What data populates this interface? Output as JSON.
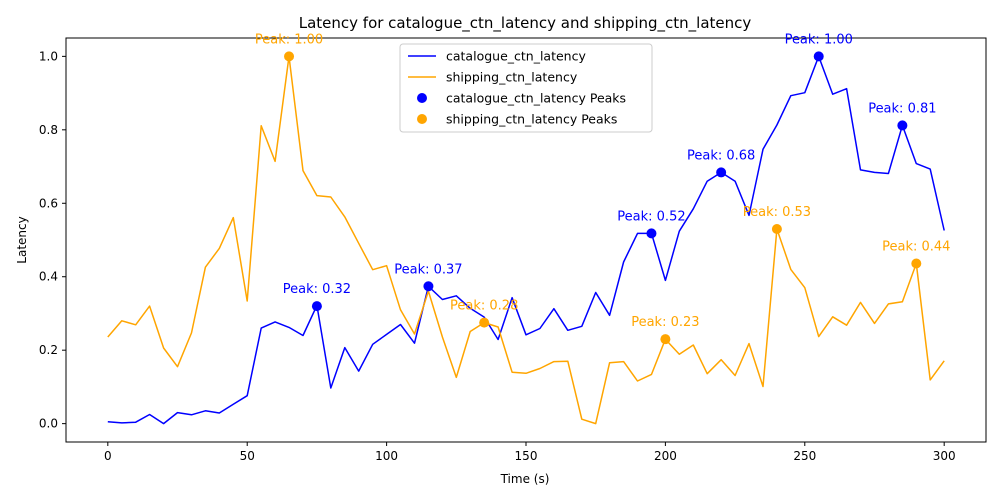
{
  "chart_data": {
    "type": "line",
    "title": "Latency for catalogue_ctn_latency and shipping_ctn_latency",
    "xlabel": "Time (s)",
    "ylabel": "Latency",
    "xlim": [
      -15,
      315
    ],
    "ylim": [
      -0.05,
      1.05
    ],
    "xticks": [
      0,
      50,
      100,
      150,
      200,
      250,
      300
    ],
    "yticks": [
      0.0,
      0.2,
      0.4,
      0.6,
      0.8,
      1.0
    ],
    "grid": false,
    "legend_position": "top-center",
    "peak_label_prefix": "Peak: ",
    "x": [
      0,
      5,
      10,
      15,
      20,
      25,
      30,
      35,
      40,
      45,
      50,
      55,
      60,
      65,
      70,
      75,
      80,
      85,
      90,
      95,
      100,
      105,
      110,
      115,
      120,
      125,
      130,
      135,
      140,
      145,
      150,
      155,
      160,
      165,
      170,
      175,
      180,
      185,
      190,
      195,
      200,
      205,
      210,
      215,
      220,
      225,
      230,
      235,
      240,
      245,
      250,
      255,
      260,
      265,
      270,
      275,
      280,
      285,
      290,
      295,
      300
    ],
    "series": [
      {
        "name": "catalogue_ctn_latency",
        "color": "#0000ff",
        "values": [
          0.005,
          0.002,
          0.004,
          0.025,
          0.0,
          0.03,
          0.024,
          0.035,
          0.029,
          0.053,
          0.076,
          0.26,
          0.277,
          0.262,
          0.24,
          0.322,
          0.097,
          0.207,
          0.143,
          0.216,
          0.243,
          0.27,
          0.219,
          0.374,
          0.338,
          0.348,
          0.314,
          0.29,
          0.229,
          0.343,
          0.242,
          0.259,
          0.313,
          0.254,
          0.265,
          0.357,
          0.295,
          0.44,
          0.518,
          0.518,
          0.39,
          0.524,
          0.585,
          0.66,
          0.684,
          0.66,
          0.567,
          0.747,
          0.813,
          0.893,
          0.901,
          1.0,
          0.897,
          0.912,
          0.691,
          0.684,
          0.681,
          0.812,
          0.708,
          0.693,
          0.526
        ],
        "peaks": [
          {
            "x": 75,
            "y": 0.32,
            "label": "0.32"
          },
          {
            "x": 115,
            "y": 0.374,
            "label": "0.37"
          },
          {
            "x": 195,
            "y": 0.518,
            "label": "0.52"
          },
          {
            "x": 220,
            "y": 0.684,
            "label": "0.68"
          },
          {
            "x": 255,
            "y": 1.0,
            "label": "1.00"
          },
          {
            "x": 285,
            "y": 0.812,
            "label": "0.81"
          }
        ]
      },
      {
        "name": "shipping_ctn_latency",
        "color": "#ffa500",
        "values": [
          0.236,
          0.28,
          0.269,
          0.32,
          0.206,
          0.155,
          0.247,
          0.426,
          0.477,
          0.561,
          0.334,
          0.811,
          0.714,
          1.0,
          0.689,
          0.621,
          0.617,
          0.563,
          0.491,
          0.419,
          0.43,
          0.31,
          0.244,
          0.361,
          0.236,
          0.126,
          0.251,
          0.275,
          0.263,
          0.14,
          0.137,
          0.15,
          0.169,
          0.17,
          0.012,
          0.0,
          0.166,
          0.169,
          0.116,
          0.134,
          0.23,
          0.189,
          0.214,
          0.136,
          0.174,
          0.131,
          0.218,
          0.101,
          0.53,
          0.42,
          0.37,
          0.237,
          0.291,
          0.268,
          0.33,
          0.273,
          0.326,
          0.332,
          0.436,
          0.119,
          0.171
        ],
        "peaks": [
          {
            "x": 65,
            "y": 1.0,
            "label": "1.00"
          },
          {
            "x": 135,
            "y": 0.275,
            "label": "0.28"
          },
          {
            "x": 200,
            "y": 0.23,
            "label": "0.23"
          },
          {
            "x": 240,
            "y": 0.53,
            "label": "0.53"
          },
          {
            "x": 290,
            "y": 0.436,
            "label": "0.44"
          }
        ]
      }
    ],
    "legend": [
      {
        "label": "catalogue_ctn_latency",
        "kind": "line",
        "color": "#0000ff"
      },
      {
        "label": "shipping_ctn_latency",
        "kind": "line",
        "color": "#ffa500"
      },
      {
        "label": "catalogue_ctn_latency Peaks",
        "kind": "marker",
        "color": "#0000ff"
      },
      {
        "label": "shipping_ctn_latency Peaks",
        "kind": "marker",
        "color": "#ffa500"
      }
    ]
  }
}
